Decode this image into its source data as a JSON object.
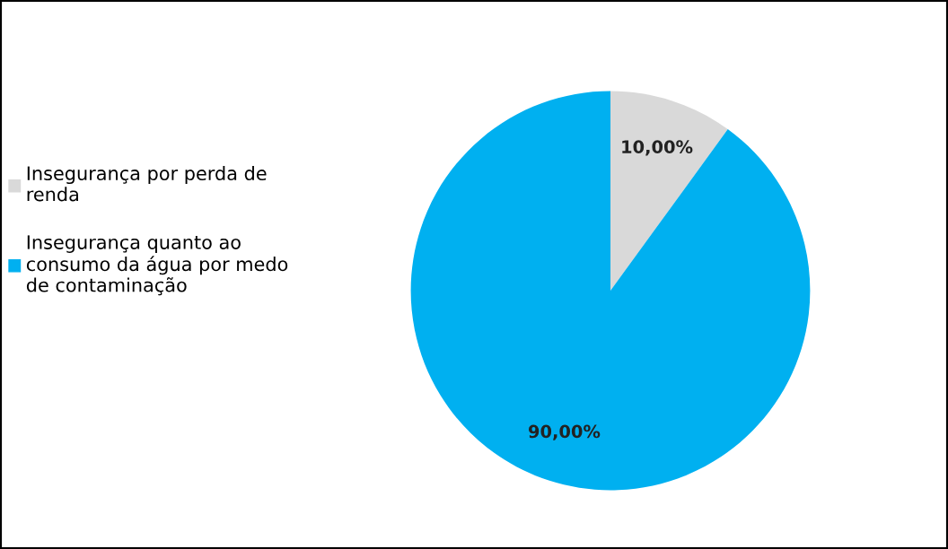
{
  "chart_data": {
    "type": "pie",
    "categories": [
      "Insegurança por perda de renda",
      "Insegurança quanto ao consumo da água por medo de contaminação"
    ],
    "values": [
      10,
      90
    ],
    "colors": [
      "#d9d9d9",
      "#00b0f0"
    ],
    "value_labels": [
      "10,00%",
      "90,00%"
    ],
    "legend": "left"
  }
}
